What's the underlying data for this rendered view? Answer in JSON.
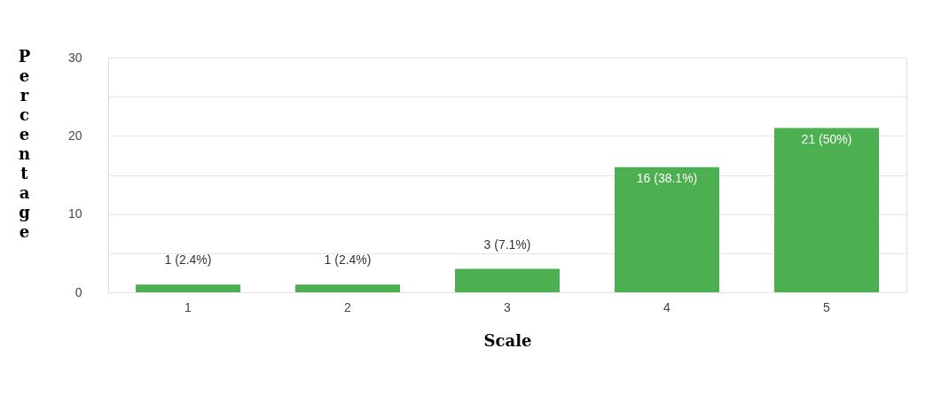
{
  "chart_data": {
    "type": "bar",
    "xlabel": "Scale",
    "ylabel": "Percentage",
    "categories": [
      "1",
      "2",
      "3",
      "4",
      "5"
    ],
    "values": [
      1,
      1,
      3,
      16,
      21
    ],
    "value_labels": [
      "1 (2.4%)",
      "1 (2.4%)",
      "3 (7.1%)",
      "16 (38.1%)",
      "21 (50%)"
    ],
    "color": "#4caf50",
    "ylim": [
      0,
      30
    ],
    "yticks": [
      0,
      {
        "value": 5,
        "label": null
      },
      10,
      {
        "value": 15,
        "label": null
      },
      20,
      {
        "value": 25,
        "label": null
      },
      30
    ],
    "grid": true
  }
}
